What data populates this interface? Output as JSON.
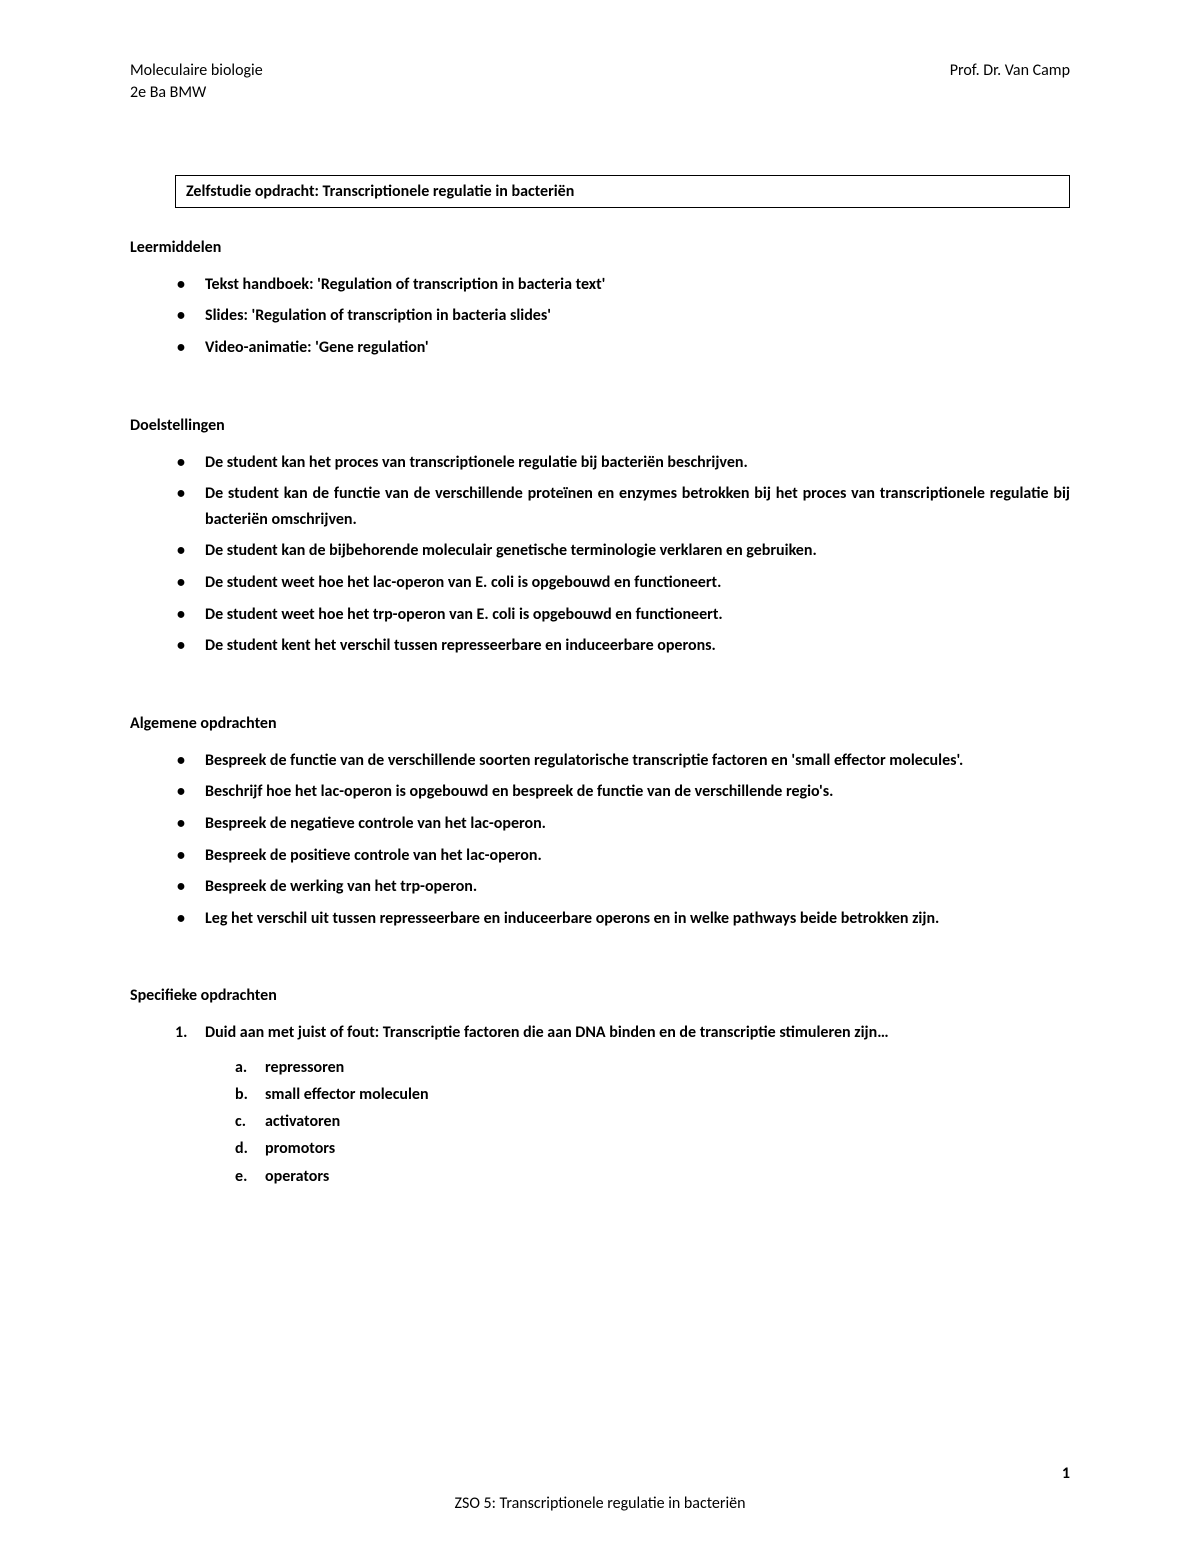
{
  "header": {
    "left_line1": "Moleculaire biologie",
    "left_line2": "2e Ba BMW",
    "right": "Prof. Dr. Van Camp"
  },
  "title_box": "Zelfstudie opdracht: Transcriptionele regulatie in bacteriën",
  "sections": {
    "leermiddelen": {
      "heading": "Leermiddelen",
      "items": [
        "Tekst handboek: 'Regulation of transcription in bacteria text'",
        "Slides: 'Regulation of transcription in bacteria slides'",
        "Video-animatie: 'Gene regulation'"
      ]
    },
    "doelstellingen": {
      "heading": "Doelstellingen",
      "items": [
        "De student kan het proces van transcriptionele regulatie bij bacteriën beschrijven.",
        "De student kan de functie van de verschillende proteïnen en enzymes betrokken bij het proces van transcriptionele regulatie bij bacteriën omschrijven.",
        "De student kan de bijbehorende moleculair genetische terminologie verklaren en gebruiken.",
        "De student weet hoe het lac-operon van E. coli is opgebouwd en functioneert.",
        "De student weet hoe het trp-operon van E. coli is opgebouwd en functioneert.",
        "De student kent het verschil tussen represseerbare en induceerbare operons."
      ]
    },
    "algemene": {
      "heading": "Algemene opdrachten",
      "items": [
        "Bespreek de functie van de verschillende soorten regulatorische transcriptie factoren en 'small effector molecules'.",
        "Beschrijf hoe het lac-operon is opgebouwd en bespreek de functie van de verschillende regio's.",
        "Bespreek de negatieve controle van het lac-operon.",
        "Bespreek de positieve controle van het lac-operon.",
        "Bespreek de werking van het trp-operon.",
        "Leg het verschil uit tussen represseerbare en induceerbare operons en in welke pathways beide betrokken zijn."
      ]
    },
    "specifieke": {
      "heading": "Specifieke opdrachten",
      "question": "Duid aan met juist of fout: Transcriptie factoren die aan DNA binden en de transcriptie stimuleren zijn…",
      "options": [
        "repressoren",
        "small effector moleculen",
        "activatoren",
        "promotors",
        "operators"
      ]
    }
  },
  "footer": "ZSO 5: Transcriptionele regulatie in bacteriën",
  "page_number": "1"
}
